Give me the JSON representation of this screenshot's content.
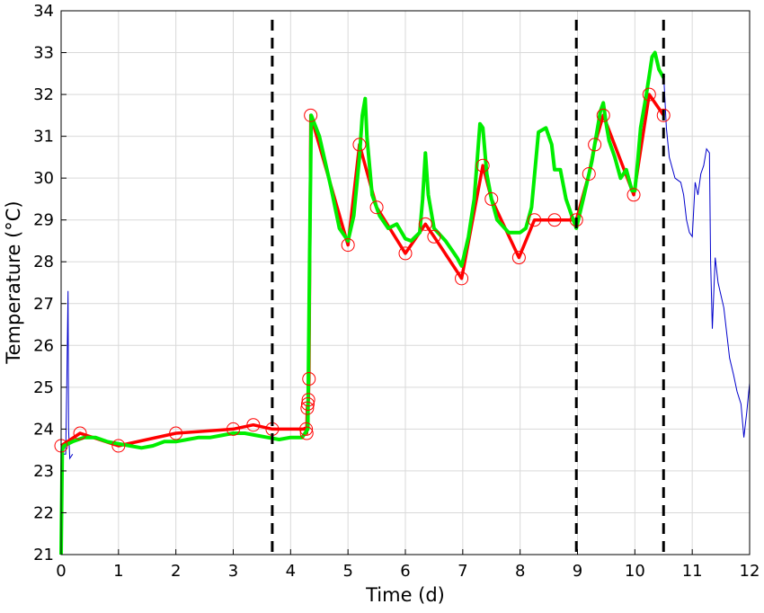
{
  "chart_data": {
    "type": "line",
    "title": "",
    "xlabel": "Time (d)",
    "ylabel": "Temperature (°C)",
    "xlim": [
      0,
      12
    ],
    "ylim": [
      21,
      34
    ],
    "xticks": [
      0,
      1,
      2,
      3,
      4,
      5,
      6,
      7,
      8,
      9,
      10,
      11,
      12
    ],
    "yticks": [
      21,
      22,
      23,
      24,
      25,
      26,
      27,
      28,
      29,
      30,
      31,
      32,
      33,
      34
    ],
    "grid": true,
    "legend": "none",
    "vertical_dashed_lines": [
      3.68,
      8.98,
      10.5
    ],
    "colors": {
      "red": "#ff0000",
      "green": "#00ee00",
      "blue": "#0000cc",
      "dashed": "#000000"
    },
    "series": [
      {
        "style": "red line with circle markers",
        "points": [
          [
            0.0,
            23.6
          ],
          [
            0.33,
            23.9
          ],
          [
            1.0,
            23.6
          ],
          [
            2.0,
            23.9
          ],
          [
            3.0,
            24.0
          ],
          [
            3.35,
            24.1
          ],
          [
            3.68,
            24.0
          ],
          [
            4.27,
            24.0
          ],
          [
            4.28,
            23.9
          ],
          [
            4.29,
            24.5
          ],
          [
            4.3,
            24.6
          ],
          [
            4.31,
            24.7
          ],
          [
            4.32,
            25.2
          ],
          [
            4.35,
            31.5
          ],
          [
            5.0,
            28.4
          ],
          [
            5.2,
            30.8
          ],
          [
            5.5,
            29.3
          ],
          [
            6.0,
            28.2
          ],
          [
            6.35,
            28.9
          ],
          [
            6.5,
            28.6
          ],
          [
            6.98,
            27.6
          ],
          [
            7.35,
            30.3
          ],
          [
            7.5,
            29.5
          ],
          [
            7.98,
            28.1
          ],
          [
            8.25,
            29.0
          ],
          [
            8.6,
            29.0
          ],
          [
            8.98,
            29.0
          ],
          [
            9.2,
            30.1
          ],
          [
            9.3,
            30.8
          ],
          [
            9.45,
            31.5
          ],
          [
            9.98,
            29.6
          ],
          [
            10.25,
            32.0
          ],
          [
            10.5,
            31.5
          ]
        ]
      },
      {
        "style": "green line",
        "points": [
          [
            0.0,
            21.0
          ],
          [
            0.02,
            23.5
          ],
          [
            0.05,
            23.6
          ],
          [
            0.2,
            23.7
          ],
          [
            0.4,
            23.8
          ],
          [
            0.6,
            23.8
          ],
          [
            0.8,
            23.7
          ],
          [
            1.0,
            23.65
          ],
          [
            1.2,
            23.6
          ],
          [
            1.4,
            23.55
          ],
          [
            1.6,
            23.6
          ],
          [
            1.8,
            23.7
          ],
          [
            2.0,
            23.7
          ],
          [
            2.2,
            23.75
          ],
          [
            2.4,
            23.8
          ],
          [
            2.6,
            23.8
          ],
          [
            2.8,
            23.85
          ],
          [
            3.0,
            23.9
          ],
          [
            3.2,
            23.9
          ],
          [
            3.4,
            23.85
          ],
          [
            3.6,
            23.8
          ],
          [
            3.8,
            23.75
          ],
          [
            4.0,
            23.8
          ],
          [
            4.2,
            23.8
          ],
          [
            4.3,
            24.0
          ],
          [
            4.33,
            28.0
          ],
          [
            4.36,
            31.5
          ],
          [
            4.5,
            31.0
          ],
          [
            4.7,
            29.8
          ],
          [
            4.85,
            28.8
          ],
          [
            5.0,
            28.5
          ],
          [
            5.1,
            29.1
          ],
          [
            5.2,
            30.5
          ],
          [
            5.25,
            31.5
          ],
          [
            5.3,
            31.9
          ],
          [
            5.33,
            31.0
          ],
          [
            5.42,
            29.6
          ],
          [
            5.55,
            29.1
          ],
          [
            5.7,
            28.8
          ],
          [
            5.85,
            28.9
          ],
          [
            6.0,
            28.55
          ],
          [
            6.1,
            28.5
          ],
          [
            6.25,
            28.7
          ],
          [
            6.3,
            29.5
          ],
          [
            6.35,
            30.6
          ],
          [
            6.4,
            29.6
          ],
          [
            6.5,
            28.8
          ],
          [
            6.7,
            28.5
          ],
          [
            6.9,
            28.1
          ],
          [
            6.98,
            27.9
          ],
          [
            7.1,
            28.6
          ],
          [
            7.2,
            29.5
          ],
          [
            7.3,
            31.3
          ],
          [
            7.35,
            31.2
          ],
          [
            7.42,
            30.1
          ],
          [
            7.5,
            29.5
          ],
          [
            7.6,
            29.0
          ],
          [
            7.8,
            28.7
          ],
          [
            8.0,
            28.7
          ],
          [
            8.1,
            28.8
          ],
          [
            8.2,
            29.3
          ],
          [
            8.32,
            31.1
          ],
          [
            8.45,
            31.2
          ],
          [
            8.55,
            30.8
          ],
          [
            8.6,
            30.2
          ],
          [
            8.7,
            30.2
          ],
          [
            8.8,
            29.5
          ],
          [
            8.9,
            29.1
          ],
          [
            8.98,
            28.8
          ],
          [
            9.1,
            29.5
          ],
          [
            9.25,
            30.4
          ],
          [
            9.4,
            31.6
          ],
          [
            9.45,
            31.8
          ],
          [
            9.5,
            31.3
          ],
          [
            9.55,
            30.9
          ],
          [
            9.65,
            30.5
          ],
          [
            9.75,
            30.0
          ],
          [
            9.85,
            30.2
          ],
          [
            9.95,
            29.7
          ],
          [
            10.0,
            29.7
          ],
          [
            10.05,
            30.4
          ],
          [
            10.1,
            31.2
          ],
          [
            10.2,
            32.0
          ],
          [
            10.3,
            32.9
          ],
          [
            10.35,
            33.0
          ],
          [
            10.42,
            32.6
          ],
          [
            10.5,
            32.4
          ]
        ]
      },
      {
        "style": "blue thin line",
        "points": [
          [
            0.0,
            23.4
          ],
          [
            0.08,
            23.4
          ],
          [
            0.1,
            25.2
          ],
          [
            0.12,
            27.3
          ],
          [
            0.13,
            24.0
          ],
          [
            0.15,
            23.3
          ],
          [
            0.2,
            23.4
          ],
          [
            10.5,
            32.5
          ],
          [
            10.55,
            31.2
          ],
          [
            10.6,
            30.5
          ],
          [
            10.7,
            30.0
          ],
          [
            10.8,
            29.9
          ],
          [
            10.85,
            29.6
          ],
          [
            10.9,
            29.0
          ],
          [
            10.95,
            28.7
          ],
          [
            11.0,
            28.6
          ],
          [
            11.05,
            29.9
          ],
          [
            11.1,
            29.6
          ],
          [
            11.15,
            30.1
          ],
          [
            11.2,
            30.3
          ],
          [
            11.25,
            30.7
          ],
          [
            11.3,
            30.6
          ],
          [
            11.32,
            28.0
          ],
          [
            11.35,
            26.4
          ],
          [
            11.4,
            28.1
          ],
          [
            11.45,
            27.5
          ],
          [
            11.55,
            26.9
          ],
          [
            11.65,
            25.7
          ],
          [
            11.72,
            25.3
          ],
          [
            11.78,
            24.9
          ],
          [
            11.85,
            24.6
          ],
          [
            11.9,
            23.8
          ],
          [
            11.95,
            24.4
          ],
          [
            12.0,
            25.1
          ]
        ]
      }
    ]
  }
}
